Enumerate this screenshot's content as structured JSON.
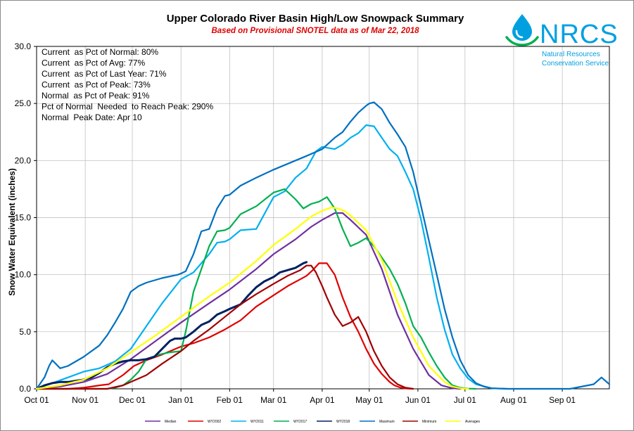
{
  "chart_data": {
    "type": "line",
    "title": "Upper Colorado River Basin High/Low Snowpack Summary",
    "subtitle": "Based on Provisional SNOTEL data as of Mar 22, 2018",
    "ylabel": "Snow Water Equivalent (inches)",
    "ylim": [
      0,
      30
    ],
    "yticks": [
      "0.0",
      "5.0",
      "10.0",
      "15.0",
      "20.0",
      "25.0",
      "30.0"
    ],
    "x_range_days": [
      0,
      365
    ],
    "xticks": [
      {
        "day": 0,
        "label": "Oct 01"
      },
      {
        "day": 31,
        "label": "Nov 01"
      },
      {
        "day": 61,
        "label": "Dec 01"
      },
      {
        "day": 92,
        "label": "Jan 01"
      },
      {
        "day": 123,
        "label": "Feb 01"
      },
      {
        "day": 151,
        "label": "Mar 01"
      },
      {
        "day": 182,
        "label": "Apr 01"
      },
      {
        "day": 212,
        "label": "May 01"
      },
      {
        "day": 243,
        "label": "Jun 01"
      },
      {
        "day": 273,
        "label": "Jul 01"
      },
      {
        "day": 304,
        "label": "Aug 01"
      },
      {
        "day": 335,
        "label": "Sep 01"
      }
    ],
    "grid": true,
    "legend_position": "bottom",
    "stats": [
      "Current  as Pct of Normal: 80%",
      "Current  as Pct of Avg: 77%",
      "Current  as Pct of Last Year: 71%",
      "Current  as Pct of Peak: 73%",
      "Normal  as Pct of Peak: 91%",
      "Pct of Normal  Needed  to Reach Peak: 290%",
      "Normal  Peak Date: Apr 10"
    ],
    "series": [
      {
        "name": "Median",
        "color": "#7030a0",
        "width": 2.2,
        "x": [
          0,
          15,
          30,
          45,
          60,
          75,
          92,
          110,
          123,
          140,
          151,
          165,
          175,
          182,
          190,
          195,
          200,
          210,
          220,
          230,
          240,
          250,
          258,
          265,
          270
        ],
        "y": [
          0,
          0.2,
          0.6,
          1.3,
          2.6,
          4.1,
          5.8,
          7.5,
          8.7,
          10.5,
          11.8,
          13.1,
          14.2,
          14.8,
          15.4,
          15.4,
          14.8,
          13.5,
          10.5,
          6.5,
          3.5,
          1.2,
          0.3,
          0.05,
          0
        ]
      },
      {
        "name": "WY2002",
        "color": "#e00000",
        "width": 2.2,
        "x": [
          0,
          20,
          30,
          40,
          46,
          55,
          62,
          70,
          80,
          92,
          100,
          110,
          120,
          130,
          140,
          151,
          160,
          168,
          172,
          176,
          180,
          185,
          190,
          195,
          200,
          205,
          210,
          215,
          220,
          225,
          228,
          232,
          236,
          240
        ],
        "y": [
          0,
          0,
          0.1,
          0.3,
          0.4,
          1.2,
          2.0,
          2.5,
          3.0,
          3.7,
          4.0,
          4.5,
          5.2,
          6.0,
          7.2,
          8.2,
          9.0,
          9.6,
          9.9,
          10.4,
          11.0,
          11.0,
          10.0,
          8.0,
          6.3,
          5.0,
          3.5,
          2.2,
          1.3,
          0.6,
          0.3,
          0.1,
          0.02,
          0
        ]
      },
      {
        "name": "WY2011",
        "color": "#00b0f0",
        "width": 2.2,
        "x": [
          0,
          10,
          20,
          30,
          40,
          50,
          60,
          70,
          80,
          92,
          100,
          110,
          115,
          120,
          123,
          130,
          140,
          151,
          158,
          165,
          172,
          178,
          182,
          190,
          195,
          200,
          205,
          210,
          215,
          220,
          225,
          230,
          235,
          240,
          245,
          250,
          255,
          260,
          265,
          270,
          275,
          280,
          290,
          300
        ],
        "y": [
          0,
          0.5,
          1.0,
          1.5,
          1.8,
          2.4,
          3.5,
          5.5,
          7.5,
          9.6,
          10.2,
          11.8,
          12.8,
          12.9,
          13.1,
          13.9,
          14.0,
          16.8,
          17.3,
          18.5,
          19.3,
          20.8,
          21.2,
          21.0,
          21.4,
          22.0,
          22.4,
          23.1,
          23.0,
          22.0,
          21.0,
          20.4,
          19.0,
          17.5,
          14.8,
          11.5,
          8.0,
          5.2,
          3.0,
          1.8,
          0.9,
          0.4,
          0.05,
          0
        ]
      },
      {
        "name": "WY2017",
        "color": "#00b050",
        "width": 2.2,
        "x": [
          0,
          30,
          40,
          45,
          50,
          55,
          60,
          65,
          70,
          78,
          85,
          92,
          95,
          100,
          105,
          110,
          115,
          120,
          123,
          130,
          140,
          151,
          158,
          165,
          170,
          175,
          180,
          185,
          190,
          195,
          200,
          205,
          210,
          215,
          220,
          225,
          230,
          235,
          240,
          245,
          250,
          255,
          260,
          265,
          270,
          275,
          280
        ],
        "y": [
          0,
          0,
          0,
          0,
          0.1,
          0.3,
          0.8,
          1.5,
          2.6,
          3.0,
          3.2,
          3.3,
          5.0,
          8.5,
          10.5,
          12.5,
          13.8,
          13.9,
          14.1,
          15.3,
          16.0,
          17.2,
          17.5,
          16.6,
          15.8,
          16.2,
          16.4,
          16.8,
          15.8,
          14.0,
          12.5,
          12.8,
          13.2,
          12.5,
          11.5,
          10.5,
          9.2,
          7.5,
          5.5,
          4.5,
          3.2,
          2.0,
          1.0,
          0.3,
          0.1,
          0.02,
          0
        ]
      },
      {
        "name": "WY2018",
        "color": "#002060",
        "width": 3,
        "x": [
          0,
          5,
          10,
          15,
          20,
          25,
          30,
          35,
          40,
          45,
          50,
          55,
          60,
          65,
          70,
          75,
          80,
          85,
          88,
          92,
          95,
          100,
          105,
          110,
          115,
          120,
          123,
          130,
          135,
          140,
          145,
          151,
          155,
          160,
          165,
          170,
          172
        ],
        "y": [
          0,
          0.3,
          0.5,
          0.6,
          0.6,
          0.7,
          0.8,
          1.0,
          1.4,
          1.9,
          2.2,
          2.4,
          2.5,
          2.5,
          2.6,
          2.8,
          3.5,
          4.2,
          4.4,
          4.4,
          4.5,
          5.0,
          5.6,
          5.9,
          6.5,
          6.8,
          7.0,
          7.4,
          8.2,
          8.9,
          9.4,
          9.8,
          10.2,
          10.4,
          10.6,
          11.0,
          11.1
        ]
      },
      {
        "name": "Maximum",
        "color": "#0070c0",
        "width": 2.2,
        "x": [
          0,
          5,
          8,
          10,
          15,
          20,
          30,
          40,
          45,
          50,
          55,
          60,
          65,
          70,
          80,
          90,
          92,
          95,
          100,
          105,
          110,
          115,
          120,
          123,
          130,
          140,
          151,
          165,
          172,
          182,
          190,
          195,
          200,
          205,
          210,
          212,
          215,
          220,
          225,
          230,
          235,
          240,
          245,
          250,
          255,
          260,
          265,
          270,
          275,
          280,
          285,
          290,
          300,
          310,
          320,
          340,
          355,
          360,
          365
        ],
        "y": [
          0,
          1.0,
          2.0,
          2.5,
          1.8,
          2.0,
          2.8,
          3.8,
          4.7,
          5.8,
          7.0,
          8.5,
          9.0,
          9.3,
          9.7,
          10.0,
          10.1,
          10.3,
          11.8,
          13.8,
          14.0,
          15.8,
          16.9,
          17.0,
          17.8,
          18.5,
          19.2,
          20.0,
          20.4,
          21.0,
          22.0,
          22.5,
          23.4,
          24.2,
          24.8,
          25.0,
          25.1,
          24.5,
          23.3,
          22.3,
          21.2,
          19.0,
          16.0,
          13.0,
          10.0,
          7.0,
          4.5,
          2.5,
          1.2,
          0.5,
          0.2,
          0.05,
          0,
          0,
          0,
          0,
          0.4,
          1.0,
          0.4
        ]
      },
      {
        "name": "Minimum",
        "color": "#a00000",
        "width": 2.2,
        "x": [
          0,
          30,
          45,
          55,
          60,
          65,
          70,
          80,
          92,
          100,
          110,
          120,
          130,
          140,
          151,
          160,
          168,
          172,
          175,
          178,
          182,
          185,
          190,
          195,
          200,
          205,
          210,
          215,
          220,
          225,
          230,
          235,
          240
        ],
        "y": [
          0,
          0,
          0,
          0.3,
          0.6,
          0.9,
          1.2,
          2.2,
          3.3,
          4.2,
          5.2,
          6.3,
          7.4,
          8.3,
          9.2,
          9.9,
          10.4,
          10.8,
          10.8,
          10.2,
          9.0,
          8.0,
          6.5,
          5.5,
          5.8,
          6.3,
          5.0,
          3.3,
          2.0,
          1.0,
          0.4,
          0.1,
          0
        ]
      },
      {
        "name": "Averages",
        "color": "#ffff00",
        "width": 2.2,
        "x": [
          0,
          15,
          30,
          45,
          60,
          75,
          92,
          110,
          123,
          140,
          151,
          165,
          175,
          182,
          188,
          192,
          196,
          200,
          210,
          220,
          230,
          240,
          250,
          260,
          265,
          270,
          275
        ],
        "y": [
          0,
          0.3,
          0.8,
          1.8,
          3.2,
          4.6,
          6.3,
          8.1,
          9.3,
          11.2,
          12.6,
          14.0,
          15.1,
          15.6,
          15.9,
          15.8,
          15.6,
          15.2,
          13.9,
          11.3,
          7.6,
          4.5,
          2.0,
          0.6,
          0.2,
          0.05,
          0
        ]
      }
    ]
  },
  "logo": {
    "name": "NRCS",
    "line1": "Natural Resources",
    "line2": "Conservation Service",
    "color": "#00a0e0"
  }
}
